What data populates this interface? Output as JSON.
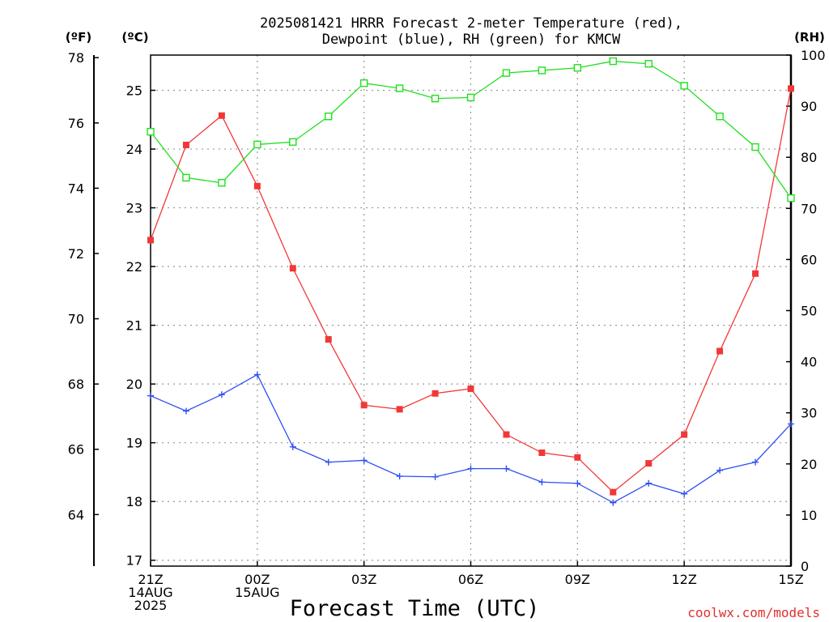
{
  "chart_data": {
    "type": "line",
    "title_line1": "2025081421 HRRR Forecast 2-meter Temperature (red),",
    "title_line2": "Dewpoint (blue), RH (green) for KMCW",
    "xlabel": "Forecast Time (UTC)",
    "watermark": "coolwx.com/models",
    "left_axis_f": {
      "label": "(ºF)",
      "ticks": [
        "64",
        "66",
        "68",
        "70",
        "72",
        "74",
        "76",
        "78"
      ],
      "tick_values": [
        64,
        66,
        68,
        70,
        72,
        74,
        76,
        78
      ]
    },
    "left_axis_c": {
      "label": "(ºC)",
      "ticks": [
        "17",
        "18",
        "19",
        "20",
        "21",
        "22",
        "23",
        "24",
        "25"
      ],
      "tick_values": [
        17,
        18,
        19,
        20,
        21,
        22,
        23,
        24,
        25
      ],
      "ylim": [
        16.9,
        25.6
      ]
    },
    "right_axis_rh": {
      "label": "(RH)",
      "ticks": [
        "0",
        "10",
        "20",
        "30",
        "40",
        "50",
        "60",
        "70",
        "80",
        "90",
        "100"
      ],
      "tick_values": [
        0,
        10,
        20,
        30,
        40,
        50,
        60,
        70,
        80,
        90,
        100
      ],
      "ylim": [
        0,
        100
      ]
    },
    "x_hours": [
      0,
      1,
      2,
      3,
      4,
      5,
      6,
      7,
      8,
      9,
      10,
      11,
      12,
      13,
      14,
      15,
      16,
      17,
      18
    ],
    "x_ticks": [
      {
        "hour": 0,
        "lines": [
          "21Z",
          "14AUG",
          "2025"
        ]
      },
      {
        "hour": 3,
        "lines": [
          "00Z",
          "15AUG"
        ]
      },
      {
        "hour": 6,
        "lines": [
          "03Z"
        ]
      },
      {
        "hour": 9,
        "lines": [
          "06Z"
        ]
      },
      {
        "hour": 12,
        "lines": [
          "09Z"
        ]
      },
      {
        "hour": 15,
        "lines": [
          "12Z"
        ]
      },
      {
        "hour": 18,
        "lines": [
          "15Z"
        ]
      }
    ],
    "series": [
      {
        "name": "Temperature",
        "unit": "C",
        "color": "#f03838",
        "marker": "filled-square",
        "values": [
          22.45,
          24.07,
          24.57,
          23.37,
          21.97,
          20.76,
          19.64,
          19.57,
          19.84,
          19.92,
          19.14,
          18.83,
          18.75,
          18.16,
          18.65,
          19.14,
          20.56,
          21.88,
          25.03
        ]
      },
      {
        "name": "Dewpoint",
        "unit": "C",
        "color": "#3050f0",
        "marker": "plus",
        "values": [
          19.8,
          19.54,
          19.82,
          20.16,
          18.93,
          18.67,
          18.7,
          18.43,
          18.42,
          18.56,
          18.56,
          18.33,
          18.31,
          17.98,
          18.31,
          18.13,
          18.53,
          18.67,
          19.32
        ]
      },
      {
        "name": "RH",
        "unit": "%",
        "color": "#20e020",
        "marker": "open-square",
        "values": [
          85,
          76,
          75,
          82.5,
          83,
          88,
          94.5,
          93.5,
          91.5,
          91.7,
          96.5,
          97,
          97.5,
          98.8,
          98.3,
          94,
          88,
          82,
          72
        ]
      }
    ]
  }
}
